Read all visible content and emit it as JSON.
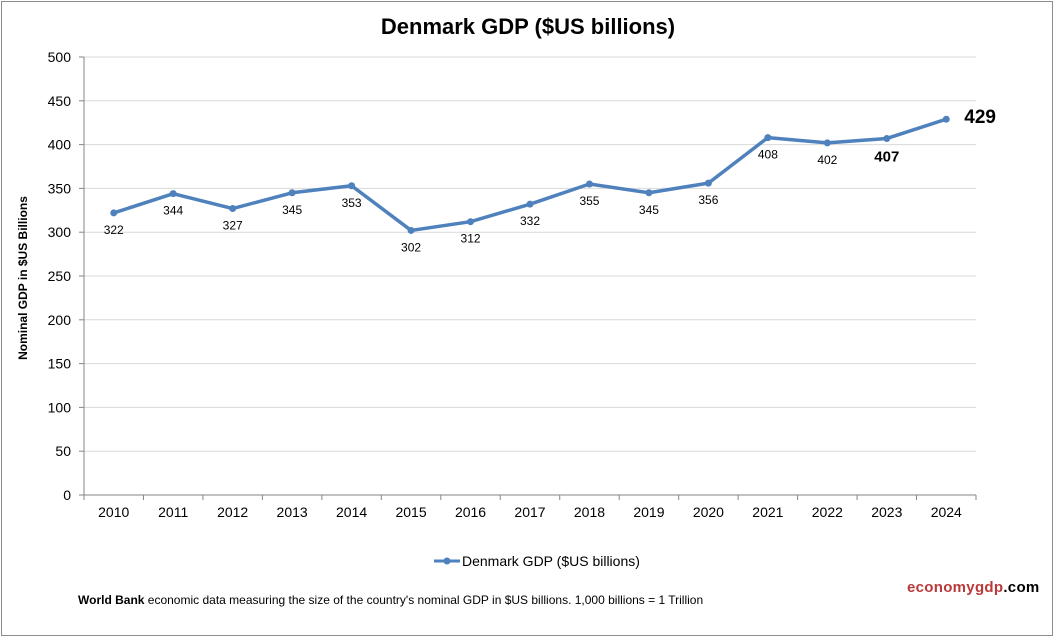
{
  "chart_data": {
    "type": "line",
    "title": "Denmark GDP ($US billions)",
    "ylabel": "Nominal GDP in $US Billions",
    "xlabel": "",
    "ylim": [
      0,
      500
    ],
    "yticks": [
      0,
      50,
      100,
      150,
      200,
      250,
      300,
      350,
      400,
      450,
      500
    ],
    "grid": true,
    "legend_position": "bottom",
    "categories": [
      "2010",
      "2011",
      "2012",
      "2013",
      "2014",
      "2015",
      "2016",
      "2017",
      "2018",
      "2019",
      "2020",
      "2021",
      "2022",
      "2023",
      "2024"
    ],
    "series": [
      {
        "name": "Denmark GDP ($US billions)",
        "color": "#4f81bd",
        "values": [
          322,
          344,
          327,
          345,
          353,
          302,
          312,
          332,
          355,
          345,
          356,
          408,
          402,
          407,
          429
        ]
      }
    ]
  },
  "footnote": {
    "source": "World Bank",
    "text": " economic data  measuring the size of the country's nominal GDP in $US billions. 1,000 billions = 1 Trillion"
  },
  "brand": {
    "part1": "economygdp",
    "part2": ".com"
  }
}
